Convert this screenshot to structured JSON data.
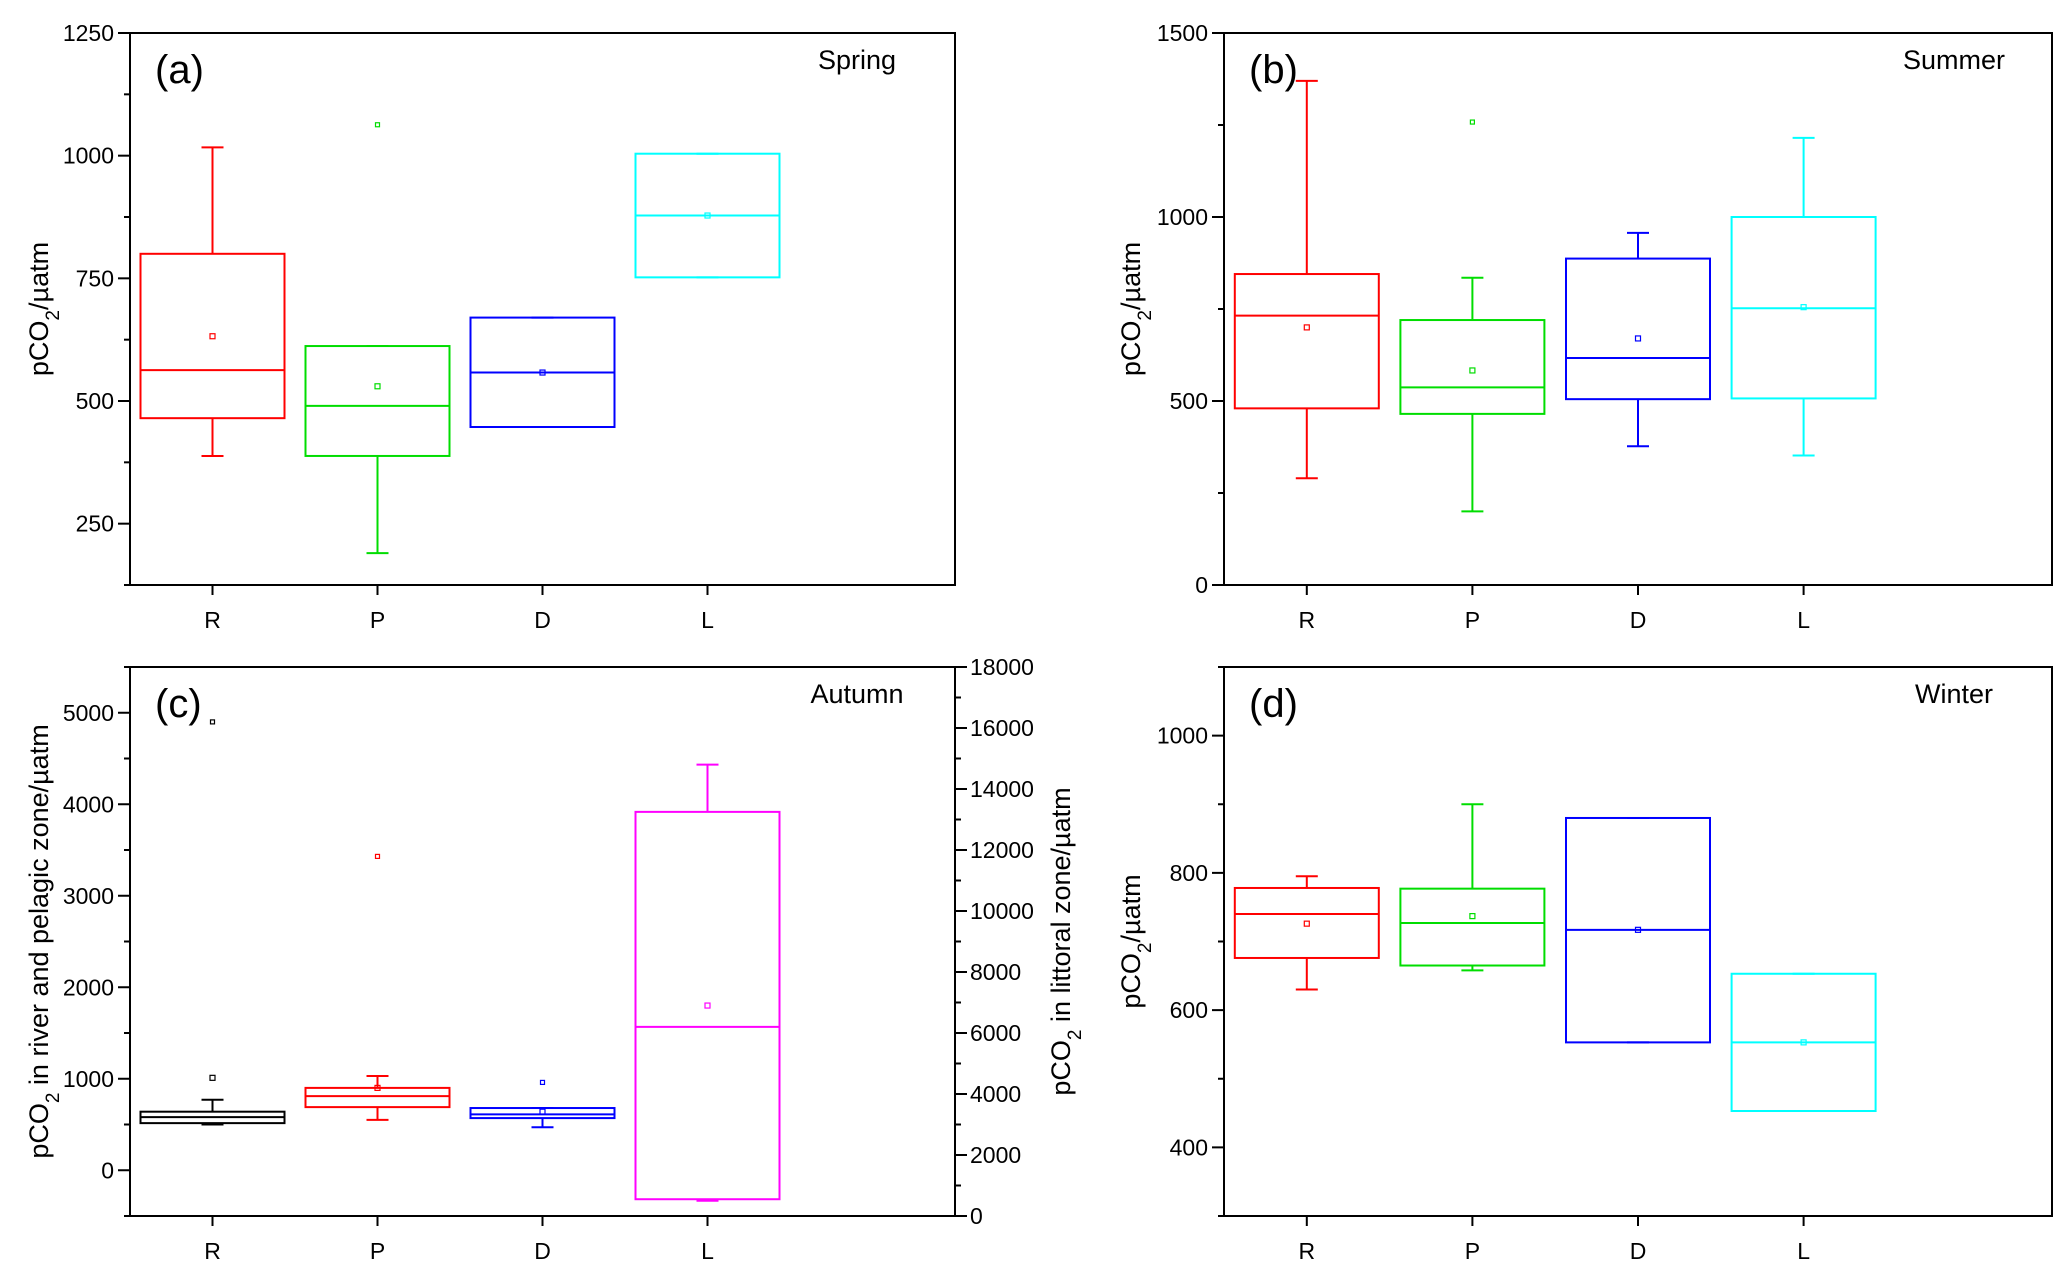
{
  "colors": {
    "R": "#ff0000",
    "P": "#00dd00",
    "D": "#0000ff",
    "L": "#00ffff",
    "autumn_R": "#000000",
    "autumn_L": "#ff00ff"
  },
  "chart_data": [
    {
      "type": "box",
      "panel_label": "(a)",
      "season": "Spring",
      "categories": [
        "R",
        "P",
        "D",
        "L"
      ],
      "ylabel": "pCO2/µatm",
      "ylim": [
        125,
        1250
      ],
      "yticks": [
        250,
        500,
        750,
        1000,
        1250
      ],
      "boxes": [
        {
          "category": "R",
          "color": "#ff0000",
          "whisker_low": 388,
          "q1": 465,
          "median": 563,
          "q3": 800,
          "whisker_high": 1017,
          "mean": 632,
          "outliers": []
        },
        {
          "category": "P",
          "color": "#00dd00",
          "whisker_low": 190,
          "q1": 388,
          "median": 490,
          "q3": 612,
          "whisker_high": 612,
          "mean": 530,
          "outliers": [
            1063
          ]
        },
        {
          "category": "D",
          "color": "#0000ff",
          "whisker_low": 447,
          "q1": 447,
          "median": 558,
          "q3": 670,
          "whisker_high": 670,
          "mean": 558,
          "outliers": []
        },
        {
          "category": "L",
          "color": "#00ffff",
          "whisker_low": 752,
          "q1": 752,
          "median": 878,
          "q3": 1004,
          "whisker_high": 1004,
          "mean": 878,
          "outliers": []
        }
      ]
    },
    {
      "type": "box",
      "panel_label": "(b)",
      "season": "Summer",
      "categories": [
        "R",
        "P",
        "D",
        "L"
      ],
      "ylabel": "pCO2/µatm",
      "ylim": [
        0,
        1500
      ],
      "yticks": [
        0,
        500,
        1000,
        1500
      ],
      "boxes": [
        {
          "category": "R",
          "color": "#ff0000",
          "whisker_low": 290,
          "q1": 480,
          "median": 732,
          "q3": 845,
          "whisker_high": 1370,
          "mean": 700,
          "outliers": []
        },
        {
          "category": "P",
          "color": "#00dd00",
          "whisker_low": 200,
          "q1": 465,
          "median": 537,
          "q3": 720,
          "whisker_high": 835,
          "mean": 583,
          "outliers": [
            1258
          ]
        },
        {
          "category": "D",
          "color": "#0000ff",
          "whisker_low": 377,
          "q1": 505,
          "median": 617,
          "q3": 887,
          "whisker_high": 957,
          "mean": 670,
          "outliers": []
        },
        {
          "category": "L",
          "color": "#00ffff",
          "whisker_low": 352,
          "q1": 507,
          "median": 752,
          "q3": 1000,
          "whisker_high": 1215,
          "mean": 755,
          "outliers": []
        }
      ]
    },
    {
      "type": "box",
      "panel_label": "(c)",
      "season": "Autumn",
      "categories": [
        "R",
        "P",
        "D",
        "L"
      ],
      "ylabel": "pCO2 in river and pelagic zone/µatm",
      "ylabel_right": "pCO2 in littoral zone/µatm",
      "ylim": [
        -500,
        5500
      ],
      "yticks": [
        0,
        1000,
        2000,
        3000,
        4000,
        5000
      ],
      "ylim_right": [
        0,
        18000
      ],
      "yticks_right": [
        0,
        2000,
        4000,
        6000,
        8000,
        10000,
        12000,
        14000,
        16000,
        18000
      ],
      "boxes": [
        {
          "category": "R",
          "color": "#000000",
          "axis": "left",
          "whisker_low": 500,
          "q1": 515,
          "median": 580,
          "q3": 640,
          "whisker_high": 770,
          "mean": 1010,
          "outliers": [
            4900
          ]
        },
        {
          "category": "P",
          "color": "#ff0000",
          "axis": "left",
          "whisker_low": 550,
          "q1": 690,
          "median": 810,
          "q3": 900,
          "whisker_high": 1030,
          "mean": 900,
          "outliers": [
            3430
          ]
        },
        {
          "category": "D",
          "color": "#0000ff",
          "axis": "left",
          "whisker_low": 470,
          "q1": 570,
          "median": 610,
          "q3": 680,
          "whisker_high": 680,
          "mean": 640,
          "outliers": [
            960
          ]
        },
        {
          "category": "L",
          "color": "#ff00ff",
          "axis": "right",
          "whisker_low": 500,
          "q1": 550,
          "median": 6200,
          "q3": 13250,
          "whisker_high": 14800,
          "mean": 6900,
          "outliers": []
        }
      ]
    },
    {
      "type": "box",
      "panel_label": "(d)",
      "season": "Winter",
      "categories": [
        "R",
        "P",
        "D",
        "L"
      ],
      "ylabel": "pCO2/µatm",
      "ylim": [
        300,
        1100
      ],
      "yticks": [
        400,
        600,
        800,
        1000
      ],
      "boxes": [
        {
          "category": "R",
          "color": "#ff0000",
          "whisker_low": 630,
          "q1": 676,
          "median": 740,
          "q3": 778,
          "whisker_high": 795,
          "mean": 726,
          "outliers": []
        },
        {
          "category": "P",
          "color": "#00dd00",
          "whisker_low": 658,
          "q1": 665,
          "median": 727,
          "q3": 777,
          "whisker_high": 900,
          "mean": 737,
          "outliers": []
        },
        {
          "category": "D",
          "color": "#0000ff",
          "whisker_low": 553,
          "q1": 553,
          "median": 717,
          "q3": 880,
          "whisker_high": 880,
          "mean": 717,
          "outliers": []
        },
        {
          "category": "L",
          "color": "#00ffff",
          "whisker_low": 453,
          "q1": 453,
          "median": 553,
          "q3": 653,
          "whisker_high": 653,
          "mean": 553,
          "outliers": []
        }
      ]
    }
  ]
}
